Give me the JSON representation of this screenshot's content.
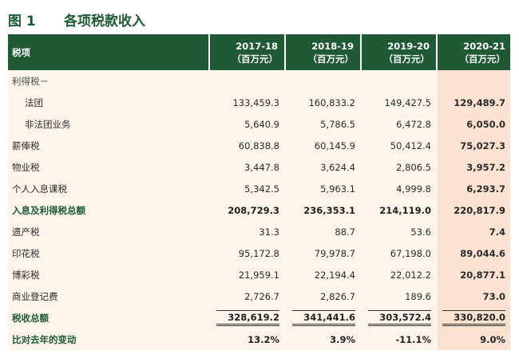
{
  "figure": {
    "label": "图 1",
    "title": "各项税款收入"
  },
  "table": {
    "header": {
      "label": "税项",
      "columns": [
        {
          "year": "2017-18",
          "unit": "（百万元）"
        },
        {
          "year": "2018-19",
          "unit": "（百万元）"
        },
        {
          "year": "2019-20",
          "unit": "（百万元）"
        },
        {
          "year": "2020-21",
          "unit": "（百万元）"
        }
      ]
    },
    "rows": [
      {
        "label": "利得税－",
        "values": [
          "",
          "",
          "",
          ""
        ]
      },
      {
        "label": "法团",
        "values": [
          "133,459.3",
          "160,833.2",
          "149,427.5",
          "129,489.7"
        ]
      },
      {
        "label": "非法团业务",
        "values": [
          "5,640.9",
          "5,786.5",
          "6,472.8",
          "6,050.0"
        ]
      },
      {
        "label": "薪俸税",
        "values": [
          "60,838.8",
          "60,145.9",
          "50,412.4",
          "75,027.3"
        ]
      },
      {
        "label": "物业税",
        "values": [
          "3,447.8",
          "3,624.4",
          "2,806.5",
          "3,957.2"
        ]
      },
      {
        "label": "个人入息课税",
        "values": [
          "5,342.5",
          "5,963.1",
          "4,999.8",
          "6,293.7"
        ]
      },
      {
        "label": "入息及利得税总额",
        "values": [
          "208,729.3",
          "236,353.1",
          "214,119.0",
          "220,817.9"
        ]
      },
      {
        "label": "遗产税",
        "values": [
          "31.3",
          "88.7",
          "53.6",
          "7.4"
        ]
      },
      {
        "label": "印花税",
        "values": [
          "95,172.8",
          "79,978.7",
          "67,198.0",
          "89,044.6"
        ]
      },
      {
        "label": "博彩税",
        "values": [
          "21,959.1",
          "22,194.4",
          "22,012.2",
          "20,877.1"
        ]
      },
      {
        "label": "商业登记费",
        "values": [
          "2,726.7",
          "2,826.7",
          "189.6",
          "73.0"
        ]
      },
      {
        "label": "税收总额",
        "values": [
          "328,619.2",
          "341,441.6",
          "303,572.4",
          "330,820.0"
        ]
      },
      {
        "label": "比对去年的变动",
        "values": [
          "13.2%",
          "3.9%",
          "-11.1%",
          "9.0%"
        ]
      }
    ]
  },
  "colors": {
    "header_bg": "#1f5a35",
    "body_bg": "#fdf4ec",
    "highlight_col": "#fbe2d0"
  }
}
